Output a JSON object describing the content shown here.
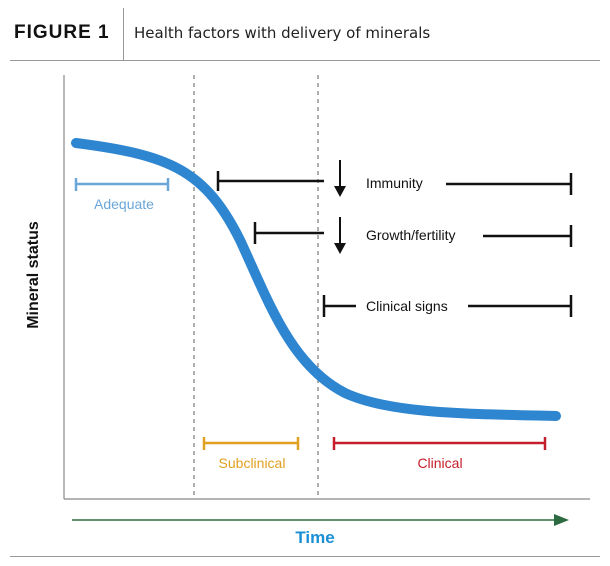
{
  "figure": {
    "label": "FIGURE 1",
    "title": "Health factors with delivery of minerals"
  },
  "axes": {
    "y_label": "Mineral status",
    "x_label": "Time"
  },
  "zones": {
    "adequate": "Adequate",
    "subclinical": "Subclinical",
    "clinical": "Clinical"
  },
  "factors": [
    {
      "label": "Immunity",
      "decrease_arrow": true
    },
    {
      "label": "Growth/fertility",
      "decrease_arrow": true
    },
    {
      "label": "Clinical signs",
      "decrease_arrow": false
    }
  ],
  "colors": {
    "curve": "#2f86d0",
    "adequate": "#6aa6d8",
    "subclinical": "#e0a020",
    "clinical": "#c41e2a",
    "time_arrow": "#2e6a3f",
    "time_label": "#1a8fd6",
    "factor_bar": "#111111"
  }
}
